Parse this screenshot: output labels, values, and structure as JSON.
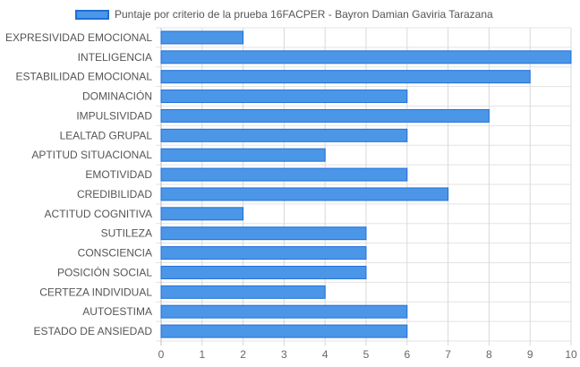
{
  "chart_data": {
    "type": "bar",
    "orientation": "horizontal",
    "categories": [
      "EXPRESIVIDAD EMOCIONAL",
      "INTELIGENCIA",
      "ESTABILIDAD EMOCIONAL",
      "DOMINACIÓN",
      "IMPULSIVIDAD",
      "LEALTAD GRUPAL",
      "APTITUD SITUACIONAL",
      "EMOTIVIDAD",
      "CREDIBILIDAD",
      "ACTITUD COGNITIVA",
      "SUTILEZA",
      "CONSCIENCIA",
      "POSICIÓN SOCIAL",
      "CERTEZA INDIVIDUAL",
      "AUTOESTIMA",
      "ESTADO DE ANSIEDAD"
    ],
    "series": [
      {
        "name": "Puntaje por criterio de la prueba 16FACPER - Bayron Damian Gaviria Tarazana",
        "values": [
          2,
          10,
          9,
          6,
          8,
          6,
          4,
          6,
          7,
          2,
          5,
          5,
          5,
          4,
          6,
          6
        ],
        "color": "#4c96e8",
        "border_color": "#1e6fd8"
      }
    ],
    "xlim": [
      0,
      10
    ],
    "xticks": [
      "0",
      "1",
      "2",
      "3",
      "4",
      "5",
      "6",
      "7",
      "8",
      "9",
      "10"
    ],
    "grid": true,
    "legend_position": "top"
  }
}
